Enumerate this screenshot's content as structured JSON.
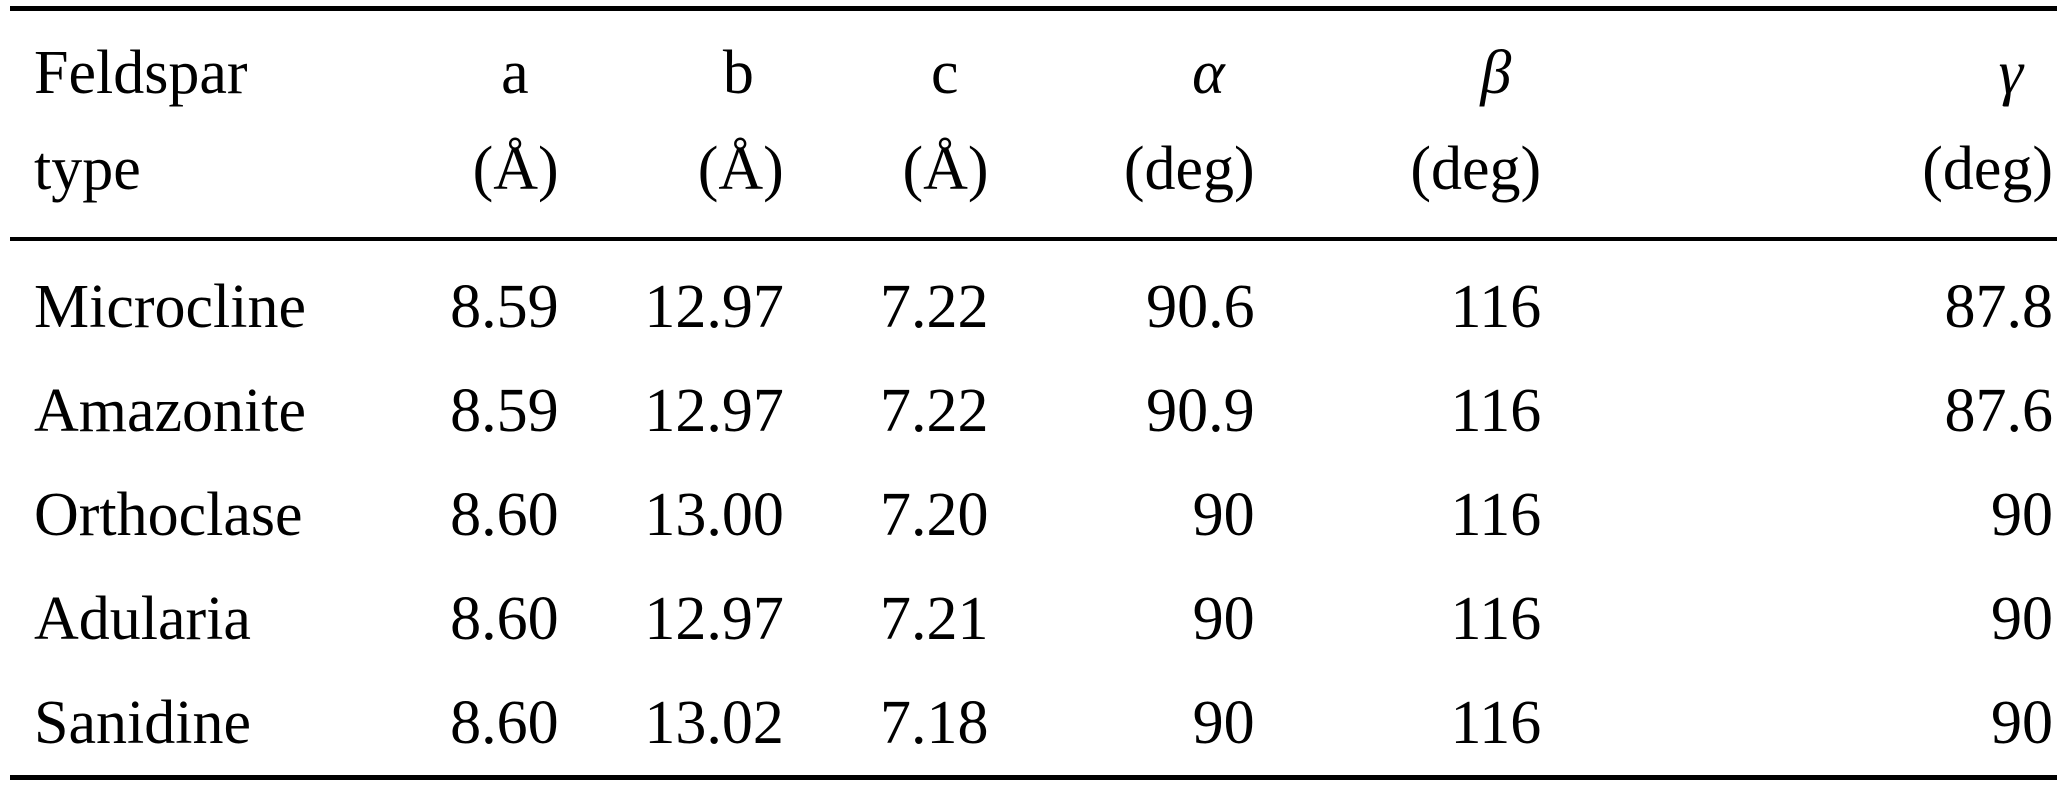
{
  "table": {
    "columns": [
      {
        "line1": "Feldspar",
        "line2": "type"
      },
      {
        "line1": "a",
        "line2": "(Å)"
      },
      {
        "line1": "b",
        "line2": "(Å)"
      },
      {
        "line1": "c",
        "line2": "(Å)"
      },
      {
        "line1": "α",
        "line2": "(deg)"
      },
      {
        "line1": "β",
        "line2": "(deg)"
      },
      {
        "line1": "γ",
        "line2": "(deg)"
      }
    ],
    "rows": [
      {
        "type": "Microcline",
        "a": "8.59",
        "b": "12.97",
        "c": "7.22",
        "alpha": "90.6",
        "beta": "116",
        "gamma": "87.8"
      },
      {
        "type": "Amazonite",
        "a": "8.59",
        "b": "12.97",
        "c": "7.22",
        "alpha": "90.9",
        "beta": "116",
        "gamma": "87.6"
      },
      {
        "type": "Orthoclase",
        "a": "8.60",
        "b": "13.00",
        "c": "7.20",
        "alpha": "90",
        "beta": "116",
        "gamma": "90"
      },
      {
        "type": "Adularia",
        "a": "8.60",
        "b": "12.97",
        "c": "7.21",
        "alpha": "90",
        "beta": "116",
        "gamma": "90"
      },
      {
        "type": "Sanidine",
        "a": "8.60",
        "b": "13.02",
        "c": "7.18",
        "alpha": "90",
        "beta": "116",
        "gamma": "90"
      }
    ]
  }
}
